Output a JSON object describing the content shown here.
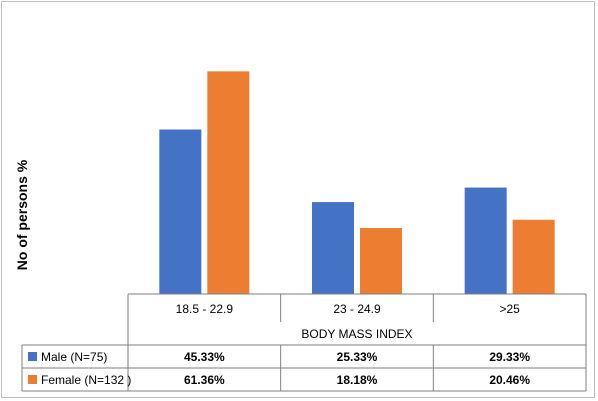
{
  "chart_data": {
    "type": "bar",
    "ylabel": "No of persons %",
    "xlabel": "BODY MASS INDEX",
    "categories": [
      "18.5 - 22.9",
      "23 - 24.9",
      ">25"
    ],
    "series": [
      {
        "name": "Male (N=75)",
        "values": [
          45.33,
          25.33,
          29.33
        ],
        "labels": [
          "45.33%",
          "25.33%",
          "29.33%"
        ],
        "color": "#4472C4"
      },
      {
        "name": "Female (N=132 )",
        "values": [
          61.36,
          18.18,
          20.46
        ],
        "labels": [
          "61.36%",
          "18.18%",
          "20.46%"
        ],
        "color": "#ED7D31"
      }
    ],
    "ylim": [
      0,
      70
    ],
    "grid": false,
    "legend": "data-table"
  }
}
